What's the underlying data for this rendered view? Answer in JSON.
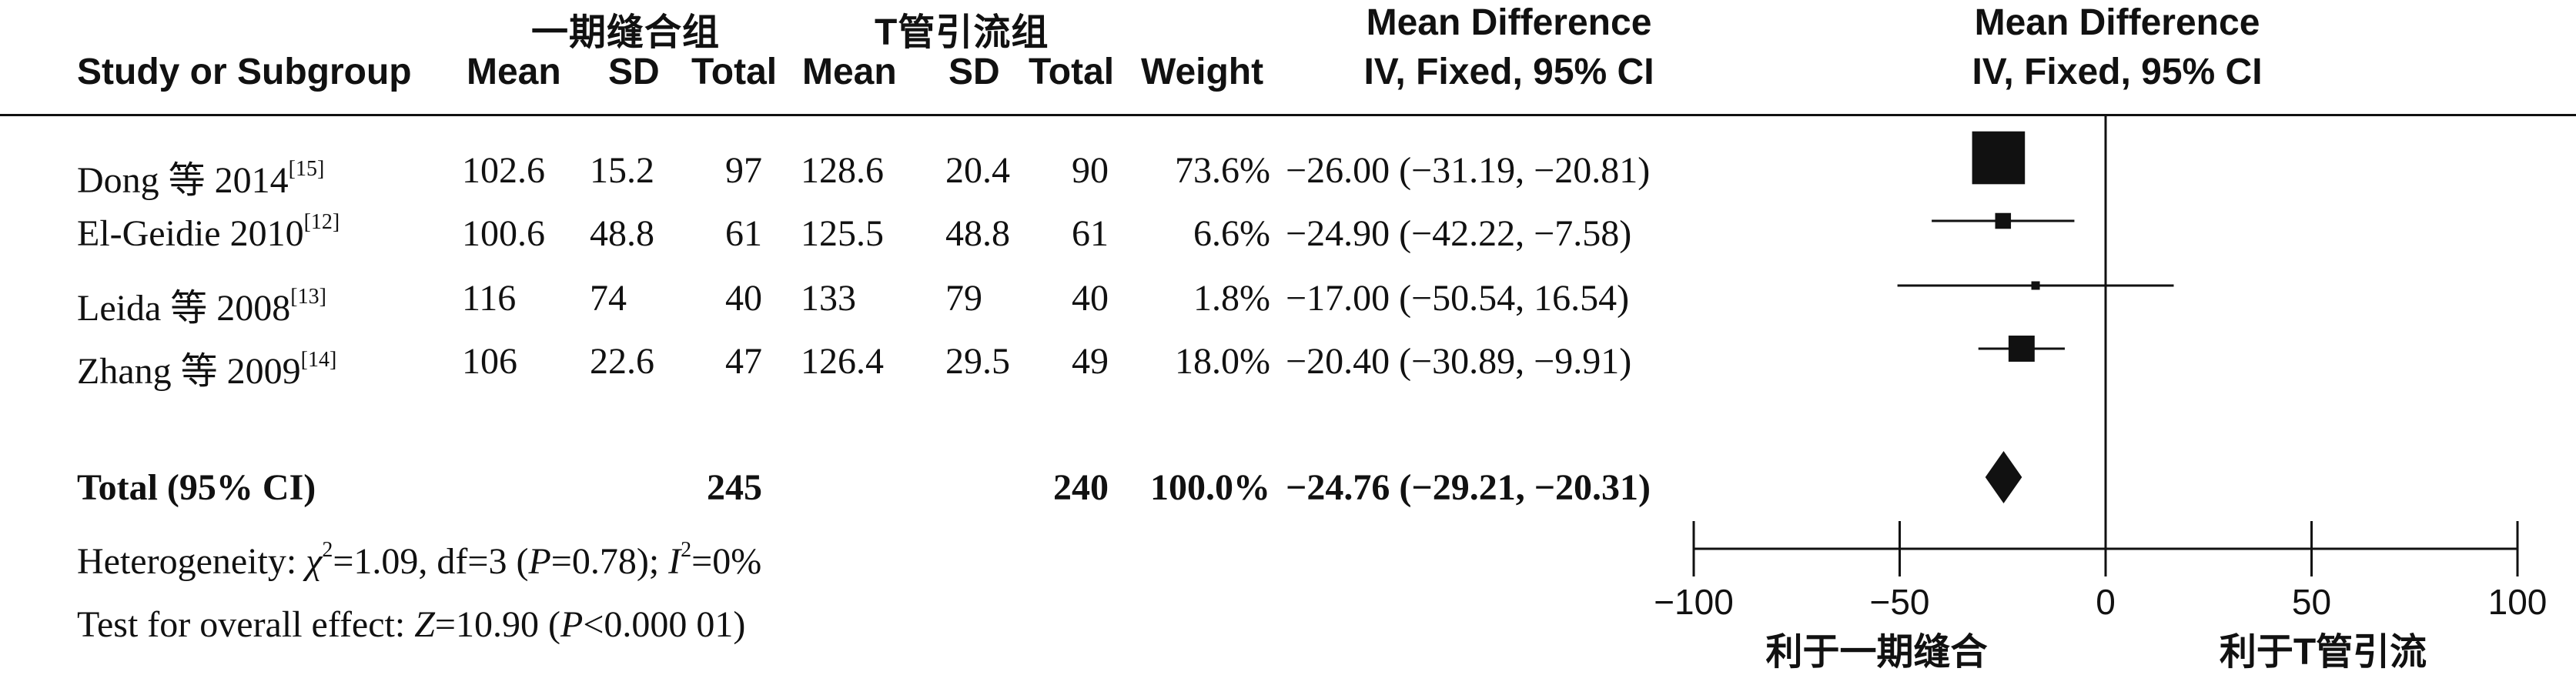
{
  "header": {
    "group1": "一期缝合组",
    "group2": "T管引流组",
    "study": "Study or Subgroup",
    "mean": "Mean",
    "sd": "SD",
    "total": "Total",
    "weight": "Weight",
    "md_title": "Mean Difference",
    "md_method": "IV, Fixed, 95% CI",
    "plot_title": "Mean Difference",
    "plot_method": "IV, Fixed, 95% CI"
  },
  "studies": [
    {
      "name": "Dong 等 2014",
      "ref": "[15]",
      "m1": "102.6",
      "sd1": "15.2",
      "n1": "97",
      "m2": "128.6",
      "sd2": "20.4",
      "n2": "90",
      "weight": "73.6%",
      "ci": "−26.00 (−31.19, −20.81)"
    },
    {
      "name": "El-Geidie 2010",
      "ref": "[12]",
      "m1": "100.6",
      "sd1": "48.8",
      "n1": "61",
      "m2": "125.5",
      "sd2": "48.8",
      "n2": "61",
      "weight": "6.6%",
      "ci": "−24.90 (−42.22, −7.58)"
    },
    {
      "name": "Leida 等 2008",
      "ref": "[13]",
      "m1": "116",
      "sd1": "74",
      "n1": "40",
      "m2": "133",
      "sd2": "79",
      "n2": "40",
      "weight": "1.8%",
      "ci": "−17.00 (−50.54, 16.54)"
    },
    {
      "name": "Zhang 等 2009",
      "ref": "[14]",
      "m1": "106",
      "sd1": "22.6",
      "n1": "47",
      "m2": "126.4",
      "sd2": "29.5",
      "n2": "49",
      "weight": "18.0%",
      "ci": "−20.40 (−30.89, −9.91)"
    }
  ],
  "total": {
    "label": "Total (95% CI)",
    "n1": "245",
    "n2": "240",
    "weight": "100.0%",
    "ci": "−24.76 (−29.21, −20.31)"
  },
  "heterogeneity": {
    "prefix": "Heterogeneity: ",
    "chi": "χ",
    "chi_sup": "2",
    "chi_rest": "=1.09, df=3 (",
    "p": "P",
    "p_rest": "=0.78); ",
    "i": "I",
    "i_sup": "2",
    "i_rest": "=0%"
  },
  "overall": {
    "prefix": "Test for overall effect: ",
    "z": "Z",
    "z_rest": "=10.90 (",
    "p": "P",
    "p_rest": "<0.000 01)"
  },
  "chart_data": {
    "type": "forest",
    "xlim": [
      -100,
      100
    ],
    "ticks": [
      -100,
      -50,
      0,
      50,
      100
    ],
    "tick_labels": [
      "−100",
      "−50",
      "0",
      "50",
      "100"
    ],
    "xlabel_left": "利于一期缝合",
    "xlabel_right": "利于T管引流",
    "studies": [
      {
        "est": -26.0,
        "lo": -31.19,
        "hi": -20.81,
        "weight": 73.6
      },
      {
        "est": -24.9,
        "lo": -42.22,
        "hi": -7.58,
        "weight": 6.6
      },
      {
        "est": -17.0,
        "lo": -50.54,
        "hi": 16.54,
        "weight": 1.8
      },
      {
        "est": -20.4,
        "lo": -30.89,
        "hi": -9.91,
        "weight": 18.0
      }
    ],
    "pooled": {
      "est": -24.76,
      "lo": -29.21,
      "hi": -20.31
    }
  }
}
